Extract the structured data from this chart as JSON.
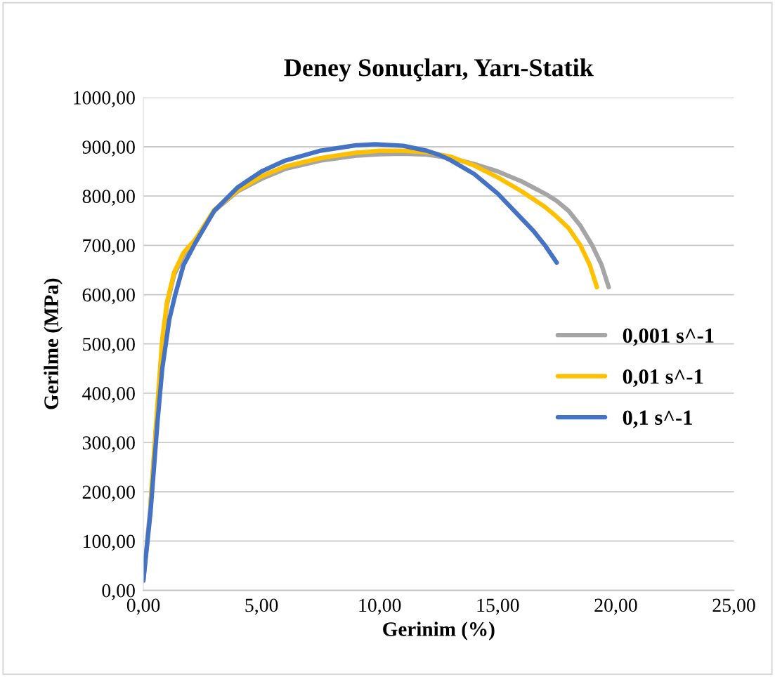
{
  "chart_data": {
    "type": "line",
    "title": "Deney Sonuçları, Yarı-Statik",
    "xlabel": "Gerinim (%)",
    "ylabel": "Gerilme (MPa)",
    "xlim": [
      0,
      25
    ],
    "ylim": [
      0,
      1000
    ],
    "xticks": [
      {
        "value": 0,
        "label": "0,00"
      },
      {
        "value": 5,
        "label": "5,00"
      },
      {
        "value": 10,
        "label": "10,00"
      },
      {
        "value": 15,
        "label": "15,00"
      },
      {
        "value": 20,
        "label": "20,00"
      },
      {
        "value": 25,
        "label": "25,00"
      }
    ],
    "yticks": [
      {
        "value": 0,
        "label": "0,00"
      },
      {
        "value": 100,
        "label": "100,00"
      },
      {
        "value": 200,
        "label": "200,00"
      },
      {
        "value": 300,
        "label": "300,00"
      },
      {
        "value": 400,
        "label": "400,00"
      },
      {
        "value": 500,
        "label": "500,00"
      },
      {
        "value": 600,
        "label": "600,00"
      },
      {
        "value": 700,
        "label": "700,00"
      },
      {
        "value": 800,
        "label": "800,00"
      },
      {
        "value": 900,
        "label": "900,00"
      },
      {
        "value": 1000,
        "label": "1000,00"
      }
    ],
    "grid": "y",
    "legend": "center right",
    "marker": "none",
    "line_style": "solid",
    "series": [
      {
        "name": "0,001 s^-1",
        "color": "#a5a5a5",
        "x": [
          0,
          0.3,
          0.6,
          0.8,
          1.0,
          1.3,
          1.7,
          2.2,
          3,
          4,
          5,
          6,
          7.5,
          9,
          10,
          11,
          12,
          13,
          14,
          15,
          16,
          17,
          17.5,
          18,
          18.5,
          19,
          19.4,
          19.7
        ],
        "values": [
          20,
          170,
          370,
          500,
          580,
          640,
          680,
          710,
          770,
          810,
          835,
          855,
          872,
          882,
          885,
          886,
          884,
          877,
          865,
          850,
          830,
          805,
          790,
          770,
          740,
          700,
          660,
          615
        ]
      },
      {
        "name": "0,01 s^-1",
        "color": "#ffc000",
        "x": [
          0.3,
          0.6,
          0.8,
          1.0,
          1.3,
          1.7,
          2.2,
          3,
          4,
          5,
          6,
          7.5,
          9,
          10,
          11,
          12,
          13,
          14,
          15,
          16,
          17,
          17.5,
          18,
          18.5,
          18.9,
          19.2
        ],
        "values": [
          175,
          380,
          510,
          585,
          645,
          685,
          712,
          772,
          812,
          840,
          860,
          877,
          888,
          892,
          892,
          889,
          880,
          862,
          838,
          810,
          778,
          758,
          735,
          700,
          660,
          615
        ]
      },
      {
        "name": "0,1 s^-1",
        "color": "#4472c4",
        "x": [
          0,
          0.3,
          0.6,
          0.8,
          0.95,
          1.1,
          1.35,
          1.7,
          2.2,
          3,
          4,
          5,
          6,
          7.5,
          9,
          9.8,
          11,
          12,
          12.5,
          13,
          14,
          15,
          16,
          16.5,
          17,
          17.5
        ],
        "values": [
          20,
          157,
          343,
          450,
          500,
          550,
          600,
          660,
          705,
          770,
          818,
          850,
          872,
          892,
          903,
          905,
          902,
          892,
          884,
          873,
          845,
          805,
          755,
          730,
          700,
          665
        ]
      }
    ]
  }
}
